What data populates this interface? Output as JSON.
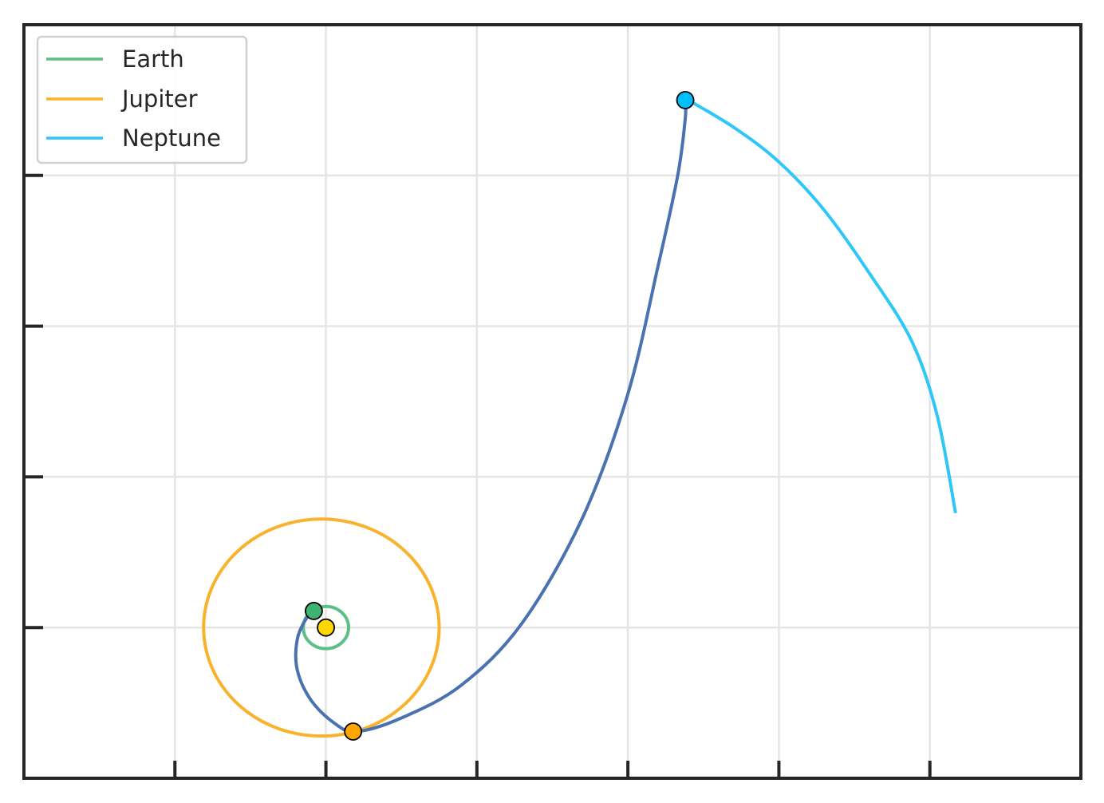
{
  "chart_data": {
    "type": "scatter",
    "title": "",
    "xlabel": "",
    "ylabel": "",
    "xlim": [
      -2,
      5
    ],
    "ylim": [
      -1,
      4
    ],
    "xticks": [
      -1,
      0,
      1,
      2,
      3,
      4
    ],
    "yticks": [
      0,
      1,
      2,
      3
    ],
    "grid": true,
    "legend": {
      "position": "top-left",
      "entries": [
        {
          "label": "Earth",
          "color": "#5cbf85"
        },
        {
          "label": "Jupiter",
          "color": "#f9b22c"
        },
        {
          "label": "Neptune",
          "color": "#2fc6f8"
        }
      ]
    },
    "colors": {
      "transfer": "#4a72b0",
      "sun": "#ffd700",
      "earth_marker": "#3cb371",
      "jupiter_marker": "#ffa500",
      "neptune_marker": "#00bfff",
      "grid": "#e5e5e5",
      "axes": "#262626"
    },
    "sun": {
      "x": 0.0,
      "y": 0.0
    },
    "earth_orbit": {
      "center": [
        0.0,
        0.0
      ],
      "radius_x": 0.15,
      "radius_y": 0.14
    },
    "jupiter_orbit": {
      "center": [
        -0.03,
        0.0
      ],
      "radius_x": 0.78,
      "radius_y": 0.72
    },
    "neptune_arc": [
      [
        2.4,
        3.5
      ],
      [
        2.7,
        3.32
      ],
      [
        3.0,
        3.09
      ],
      [
        3.3,
        2.77
      ],
      [
        3.6,
        2.35
      ],
      [
        3.88,
        1.9
      ],
      [
        4.05,
        1.4
      ],
      [
        4.17,
        0.76
      ]
    ],
    "transfer_path": [
      [
        -0.07,
        0.11
      ],
      [
        -0.13,
        0.06
      ],
      [
        -0.19,
        -0.08
      ],
      [
        -0.19,
        -0.28
      ],
      [
        -0.1,
        -0.48
      ],
      [
        0.05,
        -0.63
      ],
      [
        0.2,
        -0.69
      ],
      [
        0.5,
        -0.6
      ],
      [
        0.9,
        -0.38
      ],
      [
        1.3,
        0.03
      ],
      [
        1.7,
        0.73
      ],
      [
        2.0,
        1.55
      ],
      [
        2.2,
        2.4
      ],
      [
        2.33,
        3.0
      ],
      [
        2.38,
        3.38
      ],
      [
        2.38,
        3.5
      ]
    ],
    "markers": [
      {
        "name": "Earth",
        "x": -0.08,
        "y": 0.11
      },
      {
        "name": "Jupiter",
        "x": 0.18,
        "y": -0.69
      },
      {
        "name": "Neptune",
        "x": 2.38,
        "y": 3.5
      },
      {
        "name": "Sun",
        "x": 0.0,
        "y": 0.0
      }
    ]
  }
}
